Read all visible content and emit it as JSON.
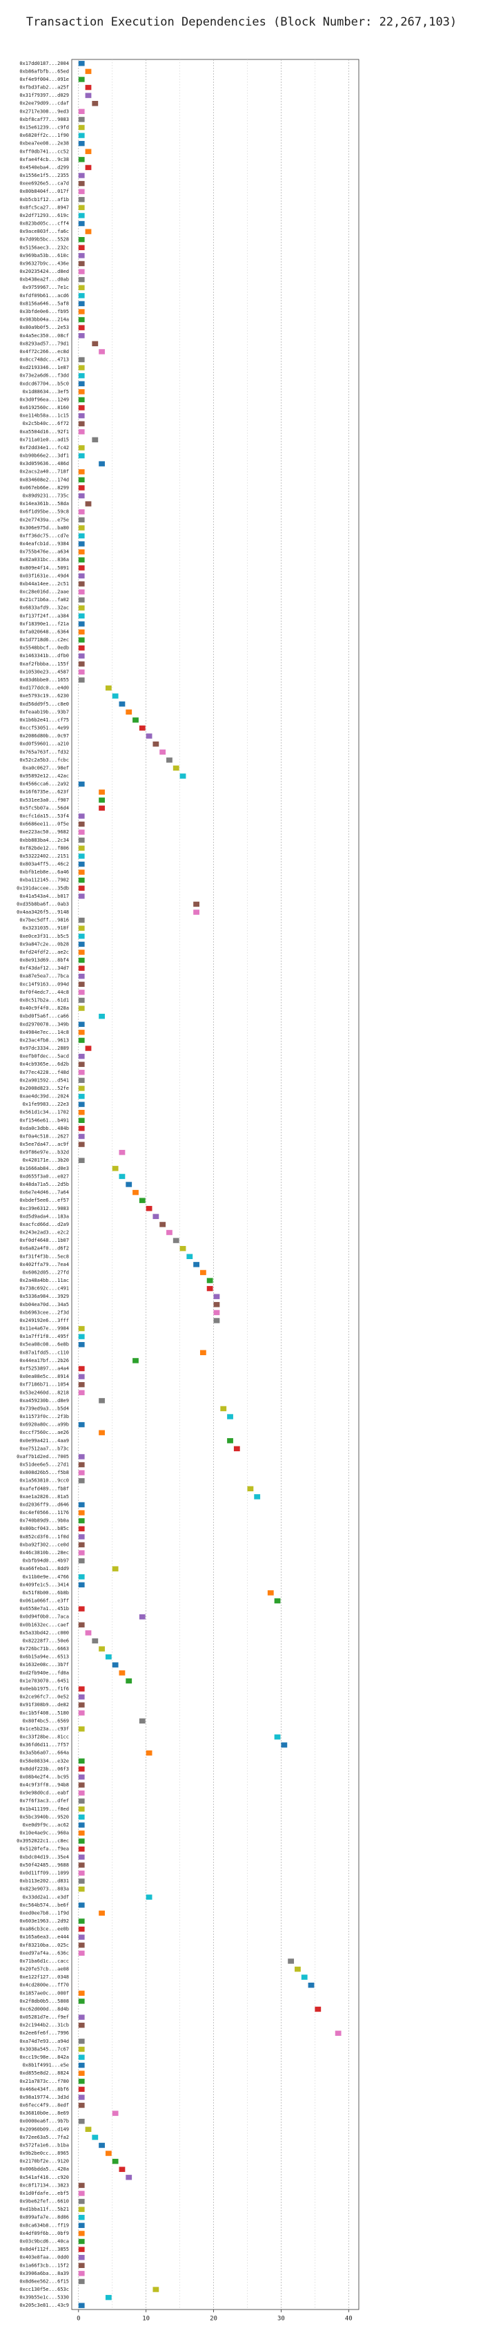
{
  "chart_data": {
    "type": "gantt",
    "title": "Transaction Execution Dependencies (Block Number: 22,267,103)",
    "categories": [
      "0x17dd0187...2004",
      "0xb86afbfb...65ed",
      "0xf4e9f004...091e",
      "0xfbd3fab2...a25f",
      "0x31f79397...d029",
      "0x2ee79d09...cdaf",
      "0x2717e308...9ed3",
      "0xbf8caf77...9083",
      "0x15e61239...c9fd",
      "0x6820ff2c...1f90",
      "0xbea7ee08...2e38",
      "0xff0db741...cc52",
      "0xfae4f4cb...9c38",
      "0x4540eba4...d299",
      "0x1556e1f5...2355",
      "0xee6926e5...ca7d",
      "0x80b8404f...017f",
      "0xb5cb1f12...af1b",
      "0x8fc5ca27...8947",
      "0x2df71293...619c",
      "0x823bd05c...cff4",
      "0x9ace803f...fa6c",
      "0x7d09b5bc...5528",
      "0x5156aec3...232c",
      "0x969ba53b...610c",
      "0x96327b9c...436e",
      "0x20235424...d8ed",
      "0xb438ea2f...d0ab",
      "0x9759967...7e1c",
      "0xfdf09b61...acd6",
      "0x8156a646...5af8",
      "0x3bfde0e6...fb95",
      "0x983bb04a...214a",
      "0x80a9b0f5...2e53",
      "0x4a5ec350...08cf",
      "0x8293ad57...79d1",
      "0x4f72c266...ec8d",
      "0x8cc748dc...4713",
      "0xd2193346...1e87",
      "0x73e2a6d6...f3dd",
      "0xdcd67704...b5c0",
      "0x1d88634...3ef5",
      "0x3d0f96ea...1249",
      "0x6192560c...8160",
      "0xe114b58a...1c15",
      "0x2c5b40c...6f72",
      "0xa5504d16...92f1",
      "0x711a01e0...ad15",
      "0xf2dd34e1...fc42",
      "0xb90b66e2...3df1",
      "0x3d059636...486d",
      "0x2acs2a40...718f",
      "0x834608e2...174d",
      "0x067eb66e...8299",
      "0x89d9231...735c",
      "0x14ea361b...58da",
      "0x6f1d95be...59c8",
      "0x2e77439a...e75e",
      "0x306e975d...ba80",
      "0xff36dc75...cd7e",
      "0x4eafcb1d...9384",
      "0x755b476e...a634",
      "0x82a031bc...836a",
      "0x809e4f14...5091",
      "0x03f1631e...49d4",
      "0xb44a14ee...2c51",
      "0xc28e016d...2aae",
      "0x21c71b6a...fa02",
      "0x6833afd9...32ac",
      "0xf137f24f...a384",
      "0xf18390e1...f21a",
      "0xfa020648...6364",
      "0x1d7718d6...c2ec",
      "0x5548bbcf...0edb",
      "0x1463341b...dfb0",
      "0xaf2fbbba...155f",
      "0x10530e23...4587",
      "0x83d6bbe0...1655",
      "0xd177ddc0...e4d0",
      "0xe5793c19...6230",
      "0xd56dd9f5...c8e0",
      "0xfeaab19b...93b7",
      "0x1b6b2e41...cf75",
      "0xccf53051...4e99",
      "0x2086d80b...0c97",
      "0xd0f59601...a210",
      "0x765a763f...fd32",
      "0x52c2a5b3...fcbc",
      "0xa0c0627...98ef",
      "0x95892e12...42ac",
      "0x4566cca6...2a92",
      "0x16f6735e...623f",
      "0x531ee3a0...f907",
      "0x5fc5b07a...56d4",
      "0xcfc1da15...53f4",
      "0x6686ee11...0f5e",
      "0xe223ac50...9682",
      "0xbb883ba4...2c34",
      "0xf82bde12...f806",
      "0x53222402...2151",
      "0x803a4ff5...46c2",
      "0xbfb1eb8e...6a46",
      "0xba112145...7902",
      "0x191daccee...35db",
      "0x41a543a4...b017",
      "0xd35b8ba6f...0ab3",
      "0x4aa3426f5...9148",
      "0x7bec5dff...9816",
      "0x3231035...918f",
      "0xe0ce3f31...b5c5",
      "0x9a847c2e...0b28",
      "0xfd24fdf2...ae2c",
      "0x8e913d69...8bf4",
      "0xf43daf12...34d7",
      "0xa87e5ea7...7bca",
      "0xc14f9163...094d",
      "0xf0f4edc7...44c8",
      "0x8c517b2a...61d1",
      "0x40c9f4f0...828a",
      "0xbd0f5a6f...ca66",
      "0xd2970078...349b",
      "0x4984e7ec...14c8",
      "0x23ac4fb8...9613",
      "0x97dc3334...2889",
      "0xefb0fdec...5acd",
      "0x4cb9365e...6d2b",
      "0x77ec4228...f48d",
      "0x2a901592...d541",
      "0x2008d823...52fe",
      "0xae4dc39d...2024",
      "0x1fe9983...22e3",
      "0x561d1c34...1702",
      "0xf1546e61...b491",
      "0xda0c3dbb...484b",
      "0xf0a4c518...2627",
      "0x5ee7da47...ac9f",
      "0x9f86e97e...b32d",
      "0x420171e...3b20",
      "0x1666ab84...d0e3",
      "0xd655f3a0...e027",
      "0x48da71a5...2d5b",
      "0x6e7e4d46...7a64",
      "0xbdef5ee6...ef57",
      "0xc39e6312...9083",
      "0xd5d9ada4...183a",
      "0xacfcd66d...d2a9",
      "0x243e2ad3...e2c2",
      "0xf0df4648...1b07",
      "0x6a82a4f0...d6f2",
      "0xf31f4f3b...5ec8",
      "0x402ffa79...7ea4",
      "0x6062d05...27fd",
      "0x2a48a4bb...11ac",
      "0x738c692c...c491",
      "0x5336a984...3929",
      "0xb04ea70d...34a5",
      "0xb6963cee...2f3d",
      "0x249192e6...3fff",
      "0x11e4a67e...9984",
      "0x1a7ff1f8...495f",
      "0x5ea08c08...6e8b",
      "0x87a1fdd5...c110",
      "0x44ea17bf...2b26",
      "0xf5253897...a4a4",
      "0x0ea08e5c...8914",
      "0xf7186b71...1054",
      "0x53e2460d...8218",
      "0xa459230b...d8e9",
      "0x739ed9a3...b5d4",
      "0x11573f0c...2f3b",
      "0x6920a80c...a99b",
      "0xccf7560c...ae26",
      "0x0e99a421...4aa9",
      "0xe7512aa7...b73c",
      "0xaf7b1d2ed...7005",
      "0x51dee6e5...27d1",
      "0x808d26b5...f5b8",
      "0x1a563810...9cc0",
      "0xafefd489...fb8f",
      "0xae1a2826...81a5",
      "0xd2036ff9...d646",
      "0xc4ef0566...1176",
      "0x740b89d9...9b0a",
      "0x80bcf043...b85c",
      "0x852cd3f6...1f0d",
      "0xba92f302...ce0d",
      "0x46c3810b...28ec",
      "0xbfb94d0...4b97",
      "0xa66feba1...8dd9",
      "0x11b0e9e...4766",
      "0x409fe1c5...3414",
      "0x51f8b00...6b8b",
      "0x061a066f...e3ff",
      "0x6558e7a1...451b",
      "0x0d94f0b0...7aca",
      "0x0b1632ec...caef",
      "0x5a33bd42...c000",
      "0x82228f7...50e6",
      "0x726bc71b...6663",
      "0x6b15a94e...6513",
      "0x1632e08c...3b7f",
      "0xd2fb940e...fd0a",
      "0x1e703070...6451",
      "0x0ebb1975...f1f6",
      "0x2ce96fc7...0e52",
      "0x91f308b9...de82",
      "0xc1b5f408...5180",
      "0x80f4bc5...6569",
      "0x1ce5b23a...c93f",
      "0xc33f28be...81cc",
      "0x36fd6d11...7f57",
      "0x3a5b6a07...664a",
      "0x58e08334...e32e",
      "0x8ddf223b...06f3",
      "0x08b4e2f4...bc95",
      "0x4c9f3ff8...94b8",
      "0x9e98d0cd...eabf",
      "0x7f6f3ac3...dfef",
      "0x1b411199...f8ed",
      "0x5bc3940b...9520",
      "0xe0d9f9c...ac62",
      "0x10e4ae9c...960a",
      "0x3952022c1...c8ec",
      "0x5120fefa...f9ea",
      "0xbdc04d19...35e4",
      "0x50f42485...9688",
      "0x0d11ff09...1099",
      "0xb113e202...d831",
      "0x823e9073...803a",
      "0x33dd2a1...e3df",
      "0xc564b574...be6f",
      "0xed0ee7b8...1f9d",
      "0x603e1963...2d92",
      "0xa86cb3ce...ee0b",
      "0x165a6ea3...e444",
      "0xf83210ba...025c",
      "0xed97af4a...636c",
      "0x71ba6d1c...cacc",
      "0x20fe57cb...ae08",
      "0xe122f127...0348",
      "0x4cd2800e...ff70",
      "0x1857ae0c...000f",
      "0x2f8db0b5...5808",
      "0xc62d000d...8d4b",
      "0x05281d7e...f9ef",
      "0x2c1944b2...31cb",
      "0x2ee6fe6f...7996",
      "0xa74d7e93...a94d",
      "0x3038a545...7c67",
      "0xcc19c98e...842a",
      "0x8b1f4991...e5e",
      "0xd855e8d2...8824",
      "0x21a7873c...f780",
      "0x466e434f...8bf6",
      "0x98a19774...3d3d",
      "0x6fecc4f9...8edf",
      "0x36810b0e...8e69",
      "0x0000ea6f...9b7b",
      "0x20960b09...d149",
      "0x72ee63a5...7fa2",
      "0x572fa1e6...b1ba",
      "0x9b2be0cc...8965",
      "0x2170bf2e...9120",
      "0x006bdda5...420a",
      "0x541af416...c920",
      "0xc8f17134...3823",
      "0x1d0fdafe...ebf5",
      "0x9be62fef...6610",
      "0xd1bba11f...5b21",
      "0x899afa7e...8d86",
      "0x8ca634b8...ff19",
      "0x4df09f6b...0bf9",
      "0x03c9bcd6...40ca",
      "0x8d4f112f...3855",
      "0x403e8faa...0dd0",
      "0x1a66f3cb...15f2",
      "0x3906a6ba...8a39",
      "0x8d6ee562...6f15",
      "0xcc130f5e...653c",
      "0x39b55e1c...5330",
      "0x205c3e81...43c9"
    ],
    "starts": [
      0,
      1,
      0,
      1,
      1,
      2,
      0,
      0,
      0,
      0,
      0,
      1,
      0,
      1,
      0,
      0,
      0,
      0,
      0,
      0,
      0,
      1,
      0,
      0,
      0,
      0,
      0,
      0,
      0,
      0,
      0,
      0,
      0,
      0,
      0,
      2,
      3,
      0,
      0,
      0,
      0,
      0,
      0,
      0,
      0,
      0,
      0,
      2,
      0,
      0,
      3,
      0,
      0,
      0,
      0,
      1,
      0,
      0,
      0,
      0,
      0,
      0,
      0,
      0,
      0,
      0,
      0,
      0,
      0,
      0,
      0,
      0,
      0,
      0,
      0,
      0,
      0,
      0,
      4,
      5,
      6,
      7,
      8,
      9,
      10,
      11,
      12,
      13,
      14,
      15,
      0,
      3,
      3,
      3,
      0,
      0,
      0,
      0,
      0,
      0,
      0,
      0,
      0,
      0,
      0,
      17,
      17,
      0,
      0,
      0,
      0,
      0,
      0,
      0,
      0,
      0,
      0,
      0,
      0,
      3,
      0,
      0,
      0,
      1,
      0,
      0,
      0,
      0,
      0,
      0,
      0,
      0,
      0,
      0,
      0,
      0,
      6,
      0,
      5,
      6,
      7,
      8,
      9,
      10,
      11,
      12,
      13,
      14,
      15,
      16,
      17,
      18,
      19,
      19,
      20,
      20,
      20,
      20,
      0,
      0,
      0,
      18,
      8,
      0,
      0,
      0,
      0,
      3,
      21,
      22,
      0,
      3,
      22,
      23,
      0,
      0,
      0,
      0,
      25,
      26,
      0,
      0,
      0,
      0,
      0,
      0,
      0,
      0,
      5,
      0,
      0,
      28,
      29,
      0,
      9,
      0,
      1,
      2,
      3,
      4,
      5,
      6,
      7,
      0,
      0,
      0,
      0,
      9,
      0,
      29,
      30,
      10,
      0,
      0,
      0,
      0,
      0,
      0,
      0,
      0,
      0,
      0,
      0,
      0,
      0,
      0,
      0,
      0,
      0,
      10,
      0,
      3,
      0,
      0,
      0,
      0,
      0,
      31,
      32,
      33,
      34,
      0,
      0,
      35,
      0,
      0,
      38,
      0,
      0,
      0,
      0,
      0,
      0,
      0,
      0,
      0,
      5,
      0,
      1,
      2,
      3,
      4,
      5,
      6,
      7,
      0,
      0,
      0,
      0,
      0,
      0,
      0,
      0,
      0,
      0,
      0,
      0,
      0,
      11,
      4,
      0
    ],
    "ends": [
      1,
      2,
      1,
      2,
      2,
      3,
      1,
      1,
      1,
      1,
      1,
      2,
      1,
      2,
      1,
      1,
      1,
      1,
      1,
      1,
      1,
      2,
      1,
      1,
      1,
      1,
      1,
      1,
      1,
      1,
      1,
      1,
      1,
      1,
      1,
      3,
      4,
      1,
      1,
      1,
      1,
      1,
      1,
      1,
      1,
      1,
      1,
      3,
      1,
      1,
      4,
      1,
      1,
      1,
      1,
      2,
      1,
      1,
      1,
      1,
      1,
      1,
      1,
      1,
      1,
      1,
      1,
      1,
      1,
      1,
      1,
      1,
      1,
      1,
      1,
      1,
      1,
      1,
      5,
      6,
      7,
      8,
      9,
      10,
      11,
      12,
      13,
      14,
      15,
      16,
      1,
      4,
      4,
      4,
      1,
      1,
      1,
      1,
      1,
      1,
      1,
      1,
      1,
      1,
      1,
      18,
      18,
      1,
      1,
      1,
      1,
      1,
      1,
      1,
      1,
      1,
      1,
      1,
      1,
      4,
      1,
      1,
      1,
      2,
      1,
      1,
      1,
      1,
      1,
      1,
      1,
      1,
      1,
      1,
      1,
      1,
      7,
      1,
      6,
      7,
      8,
      9,
      10,
      11,
      12,
      13,
      14,
      15,
      16,
      17,
      18,
      19,
      20,
      20,
      21,
      21,
      21,
      21,
      1,
      1,
      1,
      19,
      9,
      1,
      1,
      1,
      1,
      4,
      22,
      23,
      1,
      4,
      23,
      24,
      1,
      1,
      1,
      1,
      26,
      27,
      1,
      1,
      1,
      1,
      1,
      1,
      1,
      1,
      6,
      1,
      1,
      29,
      30,
      1,
      10,
      1,
      2,
      3,
      4,
      5,
      6,
      7,
      8,
      1,
      1,
      1,
      1,
      10,
      1,
      30,
      31,
      11,
      1,
      1,
      1,
      1,
      1,
      1,
      1,
      1,
      1,
      1,
      1,
      1,
      1,
      1,
      1,
      1,
      1,
      11,
      1,
      4,
      1,
      1,
      1,
      1,
      1,
      32,
      33,
      34,
      35,
      1,
      1,
      36,
      1,
      1,
      39,
      1,
      1,
      1,
      1,
      1,
      1,
      1,
      1,
      1,
      6,
      1,
      2,
      3,
      4,
      5,
      6,
      7,
      8,
      1,
      1,
      1,
      1,
      1,
      1,
      1,
      1,
      1,
      1,
      1,
      1,
      1,
      12,
      5,
      1
    ],
    "palette": [
      "#1f77b4",
      "#ff7f0e",
      "#2ca02c",
      "#d62728",
      "#9467bd",
      "#8c564b",
      "#e377c2",
      "#7f7f7f",
      "#bcbd22",
      "#17becf"
    ],
    "xlim": [
      -1,
      41.5
    ],
    "xticks": [
      0,
      10,
      20,
      30,
      40
    ],
    "minor_xticks": [
      5,
      15,
      25,
      35
    ],
    "grid": true
  }
}
